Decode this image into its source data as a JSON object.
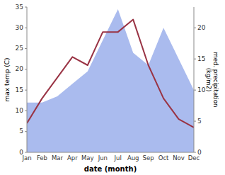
{
  "chart_data": {
    "type": "line",
    "categories": [
      "Jan",
      "Feb",
      "Mar",
      "Apr",
      "May",
      "Jun",
      "Jul",
      "Aug",
      "Sep",
      "Oct",
      "Nov",
      "Dec"
    ],
    "xlabel": "date (month)",
    "ylabel": "max temp (C)",
    "y2label": "med. precipitation\n(kg/m2)",
    "ylim": [
      0,
      35
    ],
    "yticks": [
      0,
      5,
      10,
      15,
      20,
      25,
      30,
      35
    ],
    "y2lim": [
      0,
      23.33
    ],
    "y2ticks": [
      0,
      5,
      10,
      15,
      20
    ],
    "grid": false,
    "series": [
      {
        "type": "area",
        "axis": "y2",
        "color": "#aabbee",
        "values": [
          8,
          8,
          9,
          11,
          13,
          18,
          23,
          16,
          14,
          20,
          15,
          10
        ]
      },
      {
        "type": "line",
        "color": "#993344",
        "values": [
          7,
          13,
          18,
          23,
          21,
          29,
          29,
          32,
          21,
          13,
          8,
          6
        ]
      }
    ]
  }
}
